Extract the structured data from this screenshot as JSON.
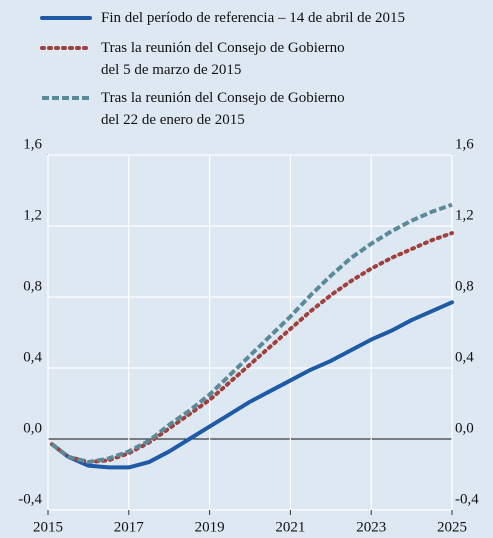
{
  "chart_data": {
    "type": "line",
    "x": [
      2015.1,
      2015.5,
      2016,
      2016.5,
      2017,
      2017.5,
      2018,
      2018.5,
      2019,
      2019.5,
      2020,
      2020.5,
      2021,
      2021.5,
      2022,
      2022.5,
      2023,
      2023.5,
      2024,
      2024.5,
      2025
    ],
    "series": [
      {
        "name": "Fin del período de referencia – 14 de abril de 2015",
        "color": "#1f5aa6",
        "style": "solid",
        "values": [
          -0.03,
          -0.1,
          -0.15,
          -0.16,
          -0.16,
          -0.13,
          -0.07,
          0.0,
          0.07,
          0.14,
          0.21,
          0.27,
          0.33,
          0.39,
          0.44,
          0.5,
          0.56,
          0.61,
          0.67,
          0.72,
          0.77
        ]
      },
      {
        "name": "Tras la reunión del Consejo de Gobierno\ndel 5 de marzo de 2015",
        "color": "#a0403a",
        "style": "dotted",
        "values": [
          -0.03,
          -0.1,
          -0.13,
          -0.12,
          -0.08,
          -0.02,
          0.06,
          0.14,
          0.22,
          0.32,
          0.42,
          0.52,
          0.62,
          0.72,
          0.81,
          0.89,
          0.96,
          1.02,
          1.07,
          1.12,
          1.16
        ]
      },
      {
        "name": "Tras la reunión del Consejo de Gobierno\ndel 22 de enero de 2015",
        "color": "#5a8a9a",
        "style": "dashed",
        "values": [
          -0.03,
          -0.1,
          -0.13,
          -0.11,
          -0.07,
          -0.01,
          0.08,
          0.16,
          0.25,
          0.36,
          0.47,
          0.58,
          0.69,
          0.81,
          0.92,
          1.02,
          1.1,
          1.17,
          1.23,
          1.28,
          1.32
        ]
      }
    ],
    "xlim": [
      2015,
      2025
    ],
    "xticks": [
      2015,
      2017,
      2019,
      2021,
      2023,
      2025
    ],
    "ylim": [
      -0.4,
      1.6
    ],
    "yticks": [
      {
        "value": -0.4,
        "label": "-0,4"
      },
      {
        "value": 0,
        "label": "0,0"
      },
      {
        "value": 0.4,
        "label": "0,4"
      },
      {
        "value": 0.8,
        "label": "0,8"
      },
      {
        "value": 1.2,
        "label": "1,2"
      },
      {
        "value": 1.6,
        "label": "1,6"
      }
    ],
    "y2lim": [
      -0.4,
      1.6
    ],
    "y2ticks": [
      {
        "value": -0.4,
        "label": "-0,4"
      },
      {
        "value": 0,
        "label": "0,0"
      },
      {
        "value": 0.4,
        "label": "0,4"
      },
      {
        "value": 0.8,
        "label": "0,8"
      },
      {
        "value": 1.2,
        "label": "1,2"
      },
      {
        "value": 1.6,
        "label": "1,6"
      }
    ],
    "grid": true,
    "legend": "top"
  }
}
